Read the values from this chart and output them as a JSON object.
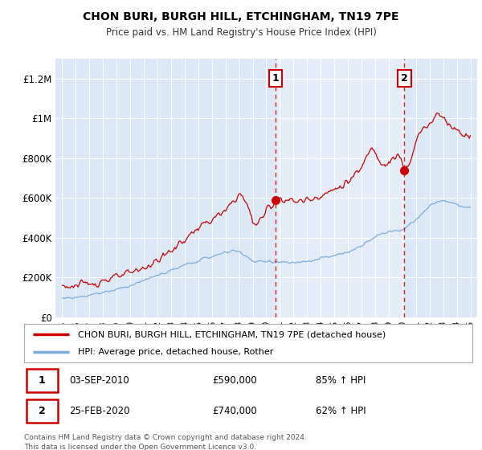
{
  "title": "CHON BURI, BURGH HILL, ETCHINGHAM, TN19 7PE",
  "subtitle": "Price paid vs. HM Land Registry's House Price Index (HPI)",
  "legend_line1": "CHON BURI, BURGH HILL, ETCHINGHAM, TN19 7PE (detached house)",
  "legend_line2": "HPI: Average price, detached house, Rother",
  "footnote": "Contains HM Land Registry data © Crown copyright and database right 2024.\nThis data is licensed under the Open Government Licence v3.0.",
  "marker1_date": "03-SEP-2010",
  "marker1_price": "£590,000",
  "marker1_hpi": "85% ↑ HPI",
  "marker2_date": "25-FEB-2020",
  "marker2_price": "£740,000",
  "marker2_hpi": "62% ↑ HPI",
  "vline1_x": 2010.67,
  "vline2_x": 2020.15,
  "marker1_y": 590000,
  "marker2_y": 740000,
  "ylim": [
    0,
    1300000
  ],
  "xlim": [
    1994.5,
    2025.5
  ],
  "red_color": "#cc0000",
  "blue_color": "#7aaddc",
  "background_color": "#ffffff",
  "plot_bg_color": "#dce8f5",
  "plot_bg_color_right": "#e8eef5",
  "grid_color": "#c8d8e8",
  "yticks": [
    0,
    200000,
    400000,
    600000,
    800000,
    1000000,
    1200000
  ],
  "ytick_labels": [
    "£0",
    "£200K",
    "£400K",
    "£600K",
    "£800K",
    "£1M",
    "£1.2M"
  ],
  "xticks": [
    1995,
    1996,
    1997,
    1998,
    1999,
    2000,
    2001,
    2002,
    2003,
    2004,
    2005,
    2006,
    2007,
    2008,
    2009,
    2010,
    2011,
    2012,
    2013,
    2014,
    2015,
    2016,
    2017,
    2018,
    2019,
    2020,
    2021,
    2022,
    2023,
    2024,
    2025
  ]
}
